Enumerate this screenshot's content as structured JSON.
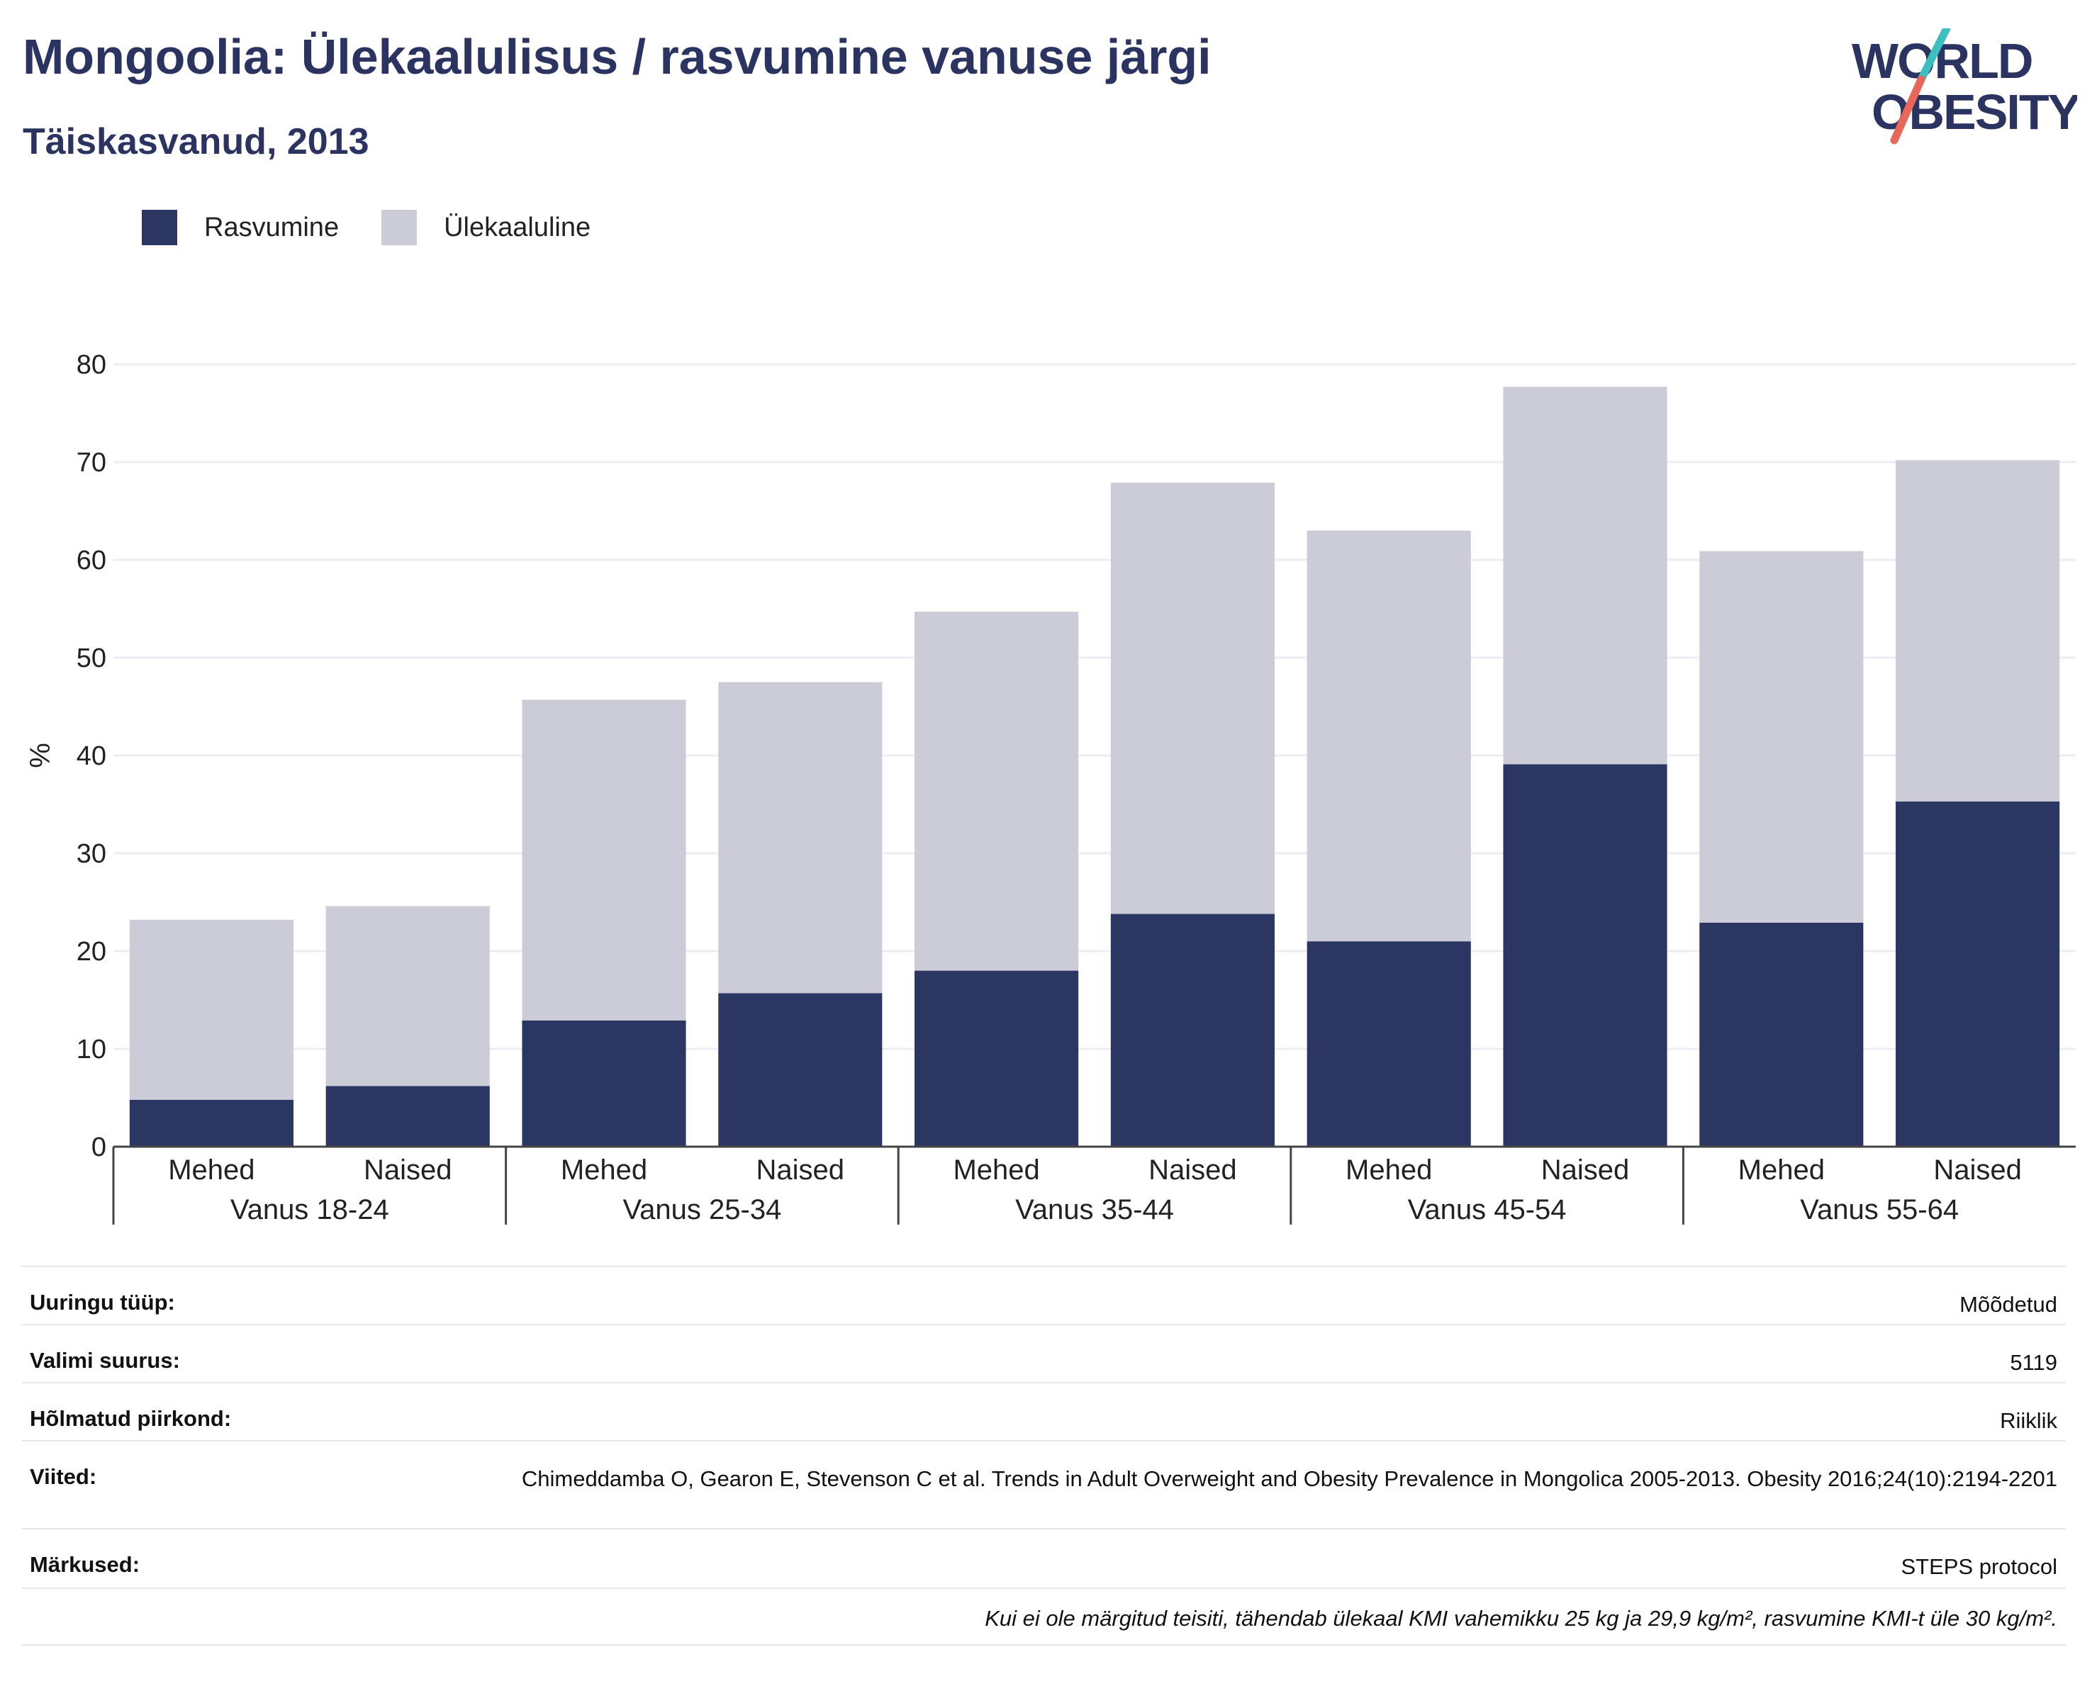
{
  "header": {
    "title": "Mongoolia: Ülekaalulisus / rasvumine vanuse järgi",
    "subtitle": "Täiskasvanud, 2013",
    "logo_line1": "WORLD",
    "logo_line2": "OBESITY"
  },
  "colors": {
    "obesity": "#2b3663",
    "overweight": "#cbccd8",
    "title": "#2b3361",
    "logo_teal": "#3bbfbf",
    "logo_red": "#e8665a"
  },
  "legend": [
    {
      "label": "Rasvumine",
      "color": "#2b3663"
    },
    {
      "label": "Ülekaaluline",
      "color": "#cbccd8"
    }
  ],
  "chart_data": {
    "type": "bar",
    "stacked": true,
    "ylabel": "%",
    "ylim": [
      0,
      80
    ],
    "yticks": [
      0,
      10,
      20,
      30,
      40,
      50,
      60,
      70,
      80
    ],
    "grid": true,
    "legend_position": "top-left",
    "groups": [
      "Vanus 18-24",
      "Vanus 25-34",
      "Vanus 35-44",
      "Vanus 45-54",
      "Vanus 55-64"
    ],
    "categories": [
      "Mehed",
      "Naised",
      "Mehed",
      "Naised",
      "Mehed",
      "Naised",
      "Mehed",
      "Naised",
      "Mehed",
      "Naised"
    ],
    "series": [
      {
        "name": "Rasvumine",
        "values": [
          4.8,
          6.2,
          12.9,
          15.7,
          18.0,
          23.8,
          21.0,
          39.1,
          22.9,
          35.3
        ]
      },
      {
        "name": "Ülekaaluline",
        "values": [
          18.4,
          18.4,
          32.8,
          31.8,
          36.7,
          44.1,
          42.0,
          38.6,
          38.0,
          34.9
        ]
      }
    ]
  },
  "info": [
    {
      "label": "Uuringu tüüp:",
      "value": "Mõõdetud"
    },
    {
      "label": "Valimi suurus:",
      "value": "5119"
    },
    {
      "label": "Hõlmatud piirkond:",
      "value": "Riiklik"
    },
    {
      "label": "Viited:",
      "value": "Chimeddamba O, Gearon E, Stevenson C et al. Trends in Adult Overweight and Obesity Prevalence in Mongolica 2005-2013. Obesity 2016;24(10):2194-2201"
    },
    {
      "label": "Märkused:",
      "value": "STEPS protocol"
    }
  ],
  "footnote": "Kui ei ole märgitud teisiti, tähendab ülekaal KMI vahemikku 25 kg ja 29,9 kg/m², rasvumine KMI-t üle 30 kg/m²."
}
